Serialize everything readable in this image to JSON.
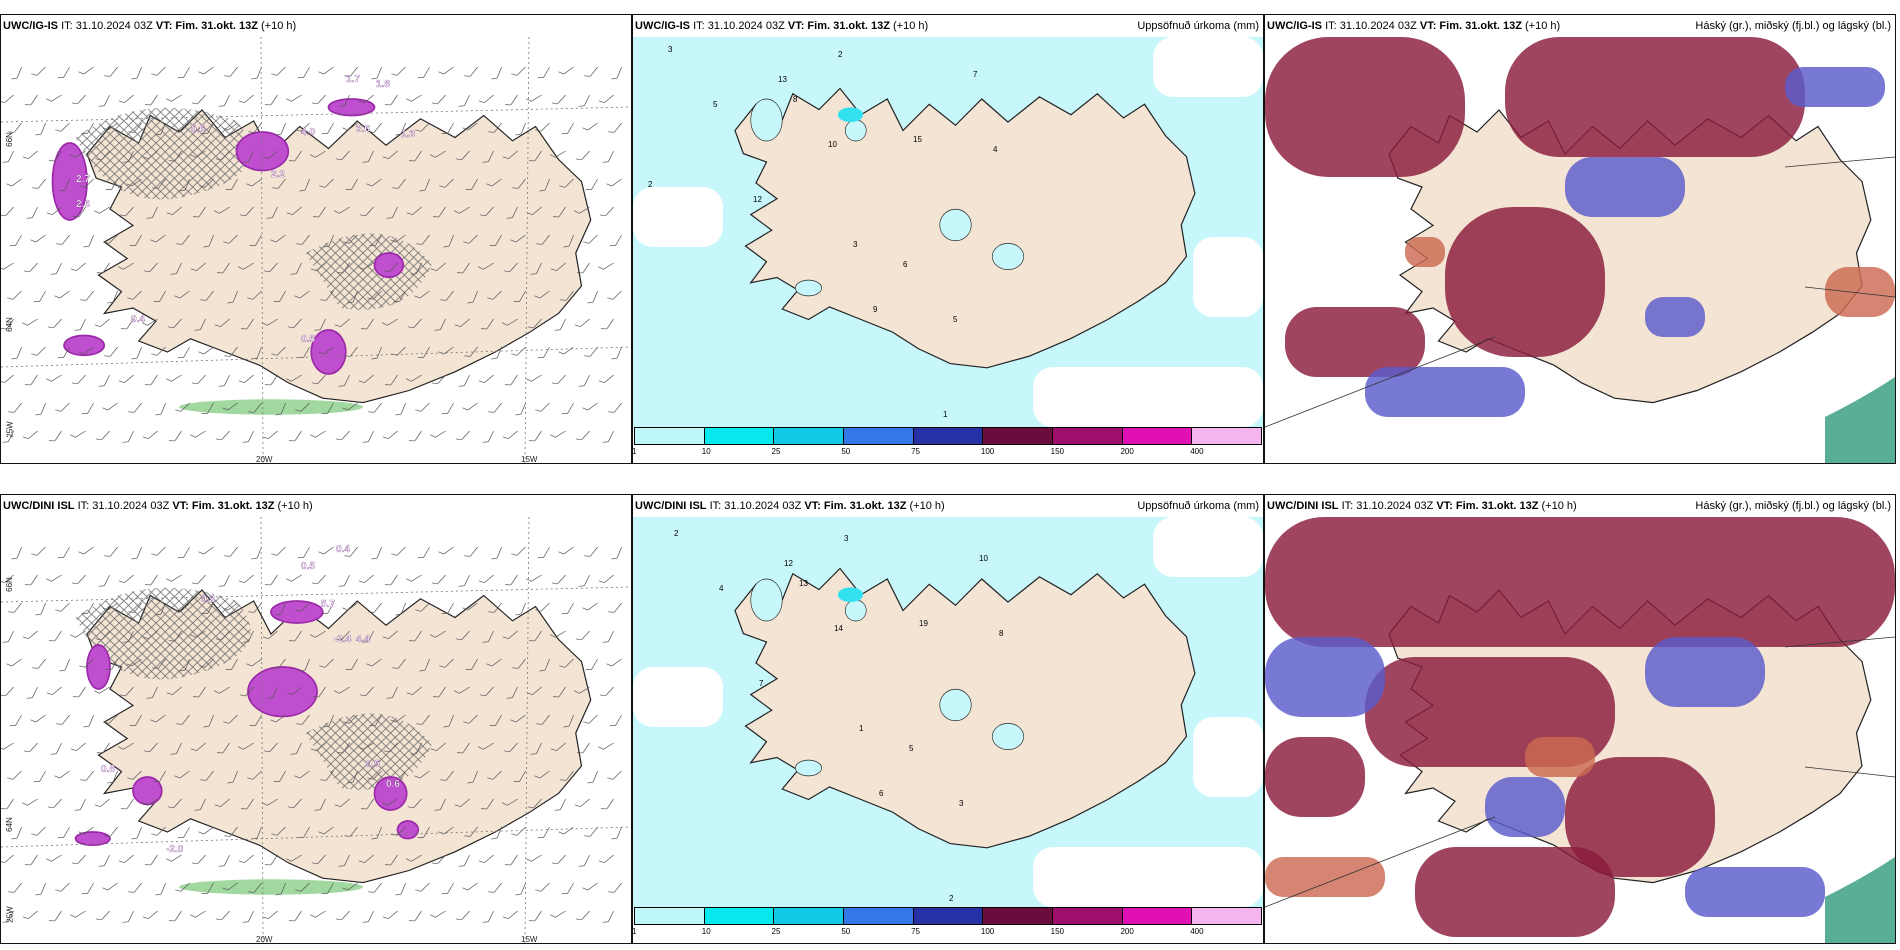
{
  "rows": [
    {
      "model": "UWC/IG-IS",
      "panels": [
        {
          "id": "wind",
          "model": "UWC/IG-IS",
          "it": "IT: 31.10.2024 03Z",
          "vt_label": "VT:",
          "vt": "Fim. 31.okt. 13Z",
          "lead": "(+10 h)",
          "right": ""
        },
        {
          "id": "precip",
          "model": "UWC/IG-IS",
          "it": "IT: 31.10.2024 03Z",
          "vt_label": "VT:",
          "vt": "Fim. 31.okt. 13Z",
          "lead": "(+10 h)",
          "right": "Uppsöfnuð úrkoma (mm)"
        },
        {
          "id": "cloud",
          "model": "UWC/IG-IS",
          "it": "IT: 31.10.2024 03Z",
          "vt_label": "VT:",
          "vt": "Fim. 31.okt. 13Z",
          "lead": "(+10 h)",
          "right": "Háský (gr.), miðský (fj.bl.) og lágský (bl.)"
        }
      ]
    },
    {
      "model": "UWC/DINI ISL",
      "panels": [
        {
          "id": "wind",
          "model": "UWC/DINI ISL",
          "it": "IT: 31.10.2024 03Z",
          "vt_label": "VT:",
          "vt": "Fim. 31.okt. 13Z",
          "lead": "(+10 h)",
          "right": ""
        },
        {
          "id": "precip",
          "model": "UWC/DINI ISL",
          "it": "IT: 31.10.2024 03Z",
          "vt_label": "VT:",
          "vt": "Fim. 31.okt. 13Z",
          "lead": "(+10 h)",
          "right": "Uppsöfnuð úrkoma (mm)"
        },
        {
          "id": "cloud",
          "model": "UWC/DINI ISL",
          "it": "IT: 31.10.2024 03Z",
          "vt_label": "VT:",
          "vt": "Fim. 31.okt. 13Z",
          "lead": "(+10 h)",
          "right": "Háský (gr.), miðský (fj.bl.) og lágský (bl.)"
        }
      ]
    }
  ],
  "axis_labels": {
    "lon20": "20W",
    "lon15": "15W",
    "lat66": "66N",
    "lat64": "64N",
    "lat25w": "25W"
  },
  "legend": {
    "thresholds": [
      "1",
      "10",
      "25",
      "50",
      "75",
      "100",
      "150",
      "200",
      "400"
    ],
    "colors": [
      "#bff8fb",
      "#08e9ef",
      "#12c9e6",
      "#3579e8",
      "#2731a6",
      "#6a0c3c",
      "#9d0f6b",
      "#e010b5",
      "#f3b4ef"
    ]
  },
  "colors": {
    "land": "#f3e4d4",
    "sea": "#ffffff",
    "precip_light": "#c7f7fa",
    "precip_mid": "#33e0ee",
    "snow_violet": "#c04fd0",
    "snow_dark": "#9b2aa8",
    "cloud_high": "#8a1c3c",
    "cloud_mid": "#5a5bcc",
    "cloud_low": "#cc6a52"
  },
  "precip_numbers_top": [
    "3",
    "2",
    "5",
    "13",
    "8",
    "10",
    "15",
    "7",
    "4",
    "12",
    "6",
    "9",
    "5",
    "3",
    "1",
    "2"
  ],
  "precip_numbers_bottom": [
    "2",
    "3",
    "4",
    "12",
    "13",
    "14",
    "19",
    "10",
    "8",
    "7",
    "5",
    "6",
    "3",
    "1",
    "2"
  ],
  "wind_labels_top": [
    "1.7",
    "1.8",
    "2.7",
    "2.6",
    "0.6",
    "4.0",
    "2.2",
    "3.6",
    "0.5",
    "1.3",
    "0.4"
  ],
  "wind_labels_bottom": [
    "0.5",
    "0.4",
    "0.3",
    "5.7",
    "4.4",
    "-2.4",
    "0.6",
    "0.5",
    "0.8",
    "-2.0"
  ]
}
